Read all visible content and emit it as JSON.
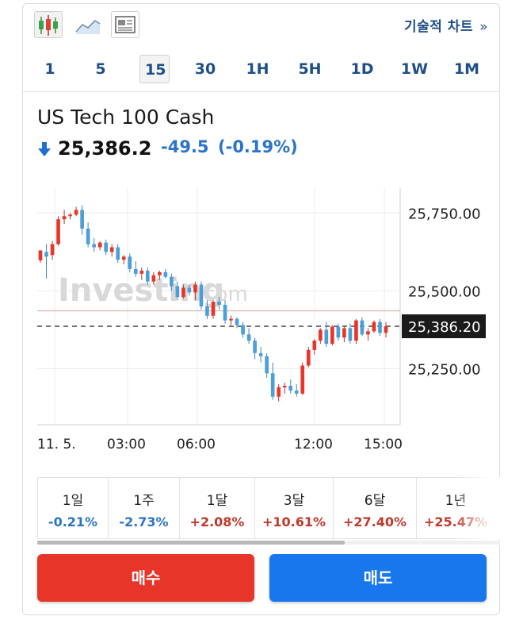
{
  "toolbar": {
    "tools": [
      "candlestick-chart-icon",
      "area-chart-icon",
      "overview-icon"
    ],
    "technical_chart_label": "기술적 차트",
    "technical_chart_chevron": "»"
  },
  "timeframes": [
    "1",
    "5",
    "15",
    "30",
    "1H",
    "5H",
    "1D",
    "1W",
    "1M"
  ],
  "selected_timeframe": "15",
  "quote": {
    "name": "US Tech 100 Cash",
    "last": "25,386.2",
    "change": "-49.5",
    "change_pct": "(-0.19%)",
    "direction": "down"
  },
  "chart_data": {
    "type": "candlestick",
    "x_ticks": [
      "11. 5.",
      "03:00",
      "06:00",
      "12:00",
      "15:00"
    ],
    "y_ticks": [
      "25,750.00",
      "25,500.00",
      "25,250.00"
    ],
    "y_tick_values": [
      25750,
      25500,
      25250
    ],
    "ylim": [
      25070,
      25830
    ],
    "current_price_label": "25,386.20",
    "current_price": 25386.2,
    "prev_close": 25435.7,
    "watermark": "Investing.com",
    "candles": [
      [
        25598,
        25630,
        25590,
        25630
      ],
      [
        25625,
        25650,
        25540,
        25610
      ],
      [
        25615,
        25660,
        25600,
        25650
      ],
      [
        25650,
        25740,
        25645,
        25730
      ],
      [
        25730,
        25760,
        25715,
        25740
      ],
      [
        25740,
        25750,
        25730,
        25745
      ],
      [
        25745,
        25770,
        25740,
        25760
      ],
      [
        25760,
        25775,
        25680,
        25700
      ],
      [
        25700,
        25720,
        25640,
        25650
      ],
      [
        25650,
        25670,
        25625,
        25640
      ],
      [
        25640,
        25660,
        25630,
        25655
      ],
      [
        25655,
        25665,
        25615,
        25625
      ],
      [
        25625,
        25650,
        25610,
        25640
      ],
      [
        25640,
        25650,
        25590,
        25600
      ],
      [
        25600,
        25615,
        25585,
        25610
      ],
      [
        25610,
        25620,
        25560,
        25570
      ],
      [
        25570,
        25595,
        25545,
        25555
      ],
      [
        25555,
        25575,
        25535,
        25565
      ],
      [
        25565,
        25575,
        25520,
        25530
      ],
      [
        25530,
        25560,
        25520,
        25550
      ],
      [
        25550,
        25565,
        25535,
        25560
      ],
      [
        25560,
        25570,
        25540,
        25545
      ],
      [
        25545,
        25555,
        25500,
        25515
      ],
      [
        25515,
        25530,
        25470,
        25480
      ],
      [
        25480,
        25520,
        25475,
        25510
      ],
      [
        25510,
        25520,
        25485,
        25495
      ],
      [
        25495,
        25530,
        25470,
        25520
      ],
      [
        25520,
        25530,
        25440,
        25450
      ],
      [
        25450,
        25470,
        25410,
        25420
      ],
      [
        25420,
        25470,
        25410,
        25465
      ],
      [
        25465,
        25480,
        25440,
        25455
      ],
      [
        25455,
        25470,
        25395,
        25405
      ],
      [
        25405,
        25420,
        25390,
        25410
      ],
      [
        25410,
        25415,
        25380,
        25390
      ],
      [
        25390,
        25400,
        25350,
        25360
      ],
      [
        25360,
        25380,
        25330,
        25340
      ],
      [
        25340,
        25350,
        25280,
        25300
      ],
      [
        25300,
        25320,
        25270,
        25290
      ],
      [
        25290,
        25300,
        25220,
        25235
      ],
      [
        25235,
        25270,
        25150,
        25160
      ],
      [
        25160,
        25200,
        25145,
        25190
      ],
      [
        25190,
        25205,
        25170,
        25195
      ],
      [
        25195,
        25215,
        25170,
        25180
      ],
      [
        25180,
        25200,
        25160,
        25170
      ],
      [
        25170,
        25270,
        25165,
        25260
      ],
      [
        25260,
        25320,
        25255,
        25310
      ],
      [
        25310,
        25345,
        25295,
        25340
      ],
      [
        25340,
        25380,
        25330,
        25375
      ],
      [
        25375,
        25400,
        25320,
        25330
      ],
      [
        25330,
        25390,
        25325,
        25385
      ],
      [
        25385,
        25395,
        25340,
        25350
      ],
      [
        25350,
        25385,
        25335,
        25380
      ],
      [
        25380,
        25395,
        25330,
        25340
      ],
      [
        25340,
        25410,
        25330,
        25405
      ],
      [
        25405,
        25415,
        25355,
        25360
      ],
      [
        25360,
        25380,
        25340,
        25370
      ],
      [
        25370,
        25405,
        25365,
        25400
      ],
      [
        25400,
        25410,
        25355,
        25365
      ],
      [
        25365,
        25400,
        25350,
        25386
      ]
    ]
  },
  "performance": [
    {
      "period": "1일",
      "value": "-0.21%",
      "dir": "neg"
    },
    {
      "period": "1주",
      "value": "-2.73%",
      "dir": "neg"
    },
    {
      "period": "1달",
      "value": "+2.08%",
      "dir": "pos"
    },
    {
      "period": "3달",
      "value": "+10.61%",
      "dir": "pos"
    },
    {
      "period": "6달",
      "value": "+27.40%",
      "dir": "pos"
    },
    {
      "period": "1년",
      "value": "+25.47%",
      "dir": "pos"
    }
  ],
  "actions": {
    "buy_label": "매수",
    "sell_label": "매도"
  },
  "colors": {
    "up": "#e8352a",
    "down": "#4a9fd8",
    "accent": "#1f4f86",
    "buy": "#e8352a",
    "sell": "#1877ec"
  }
}
